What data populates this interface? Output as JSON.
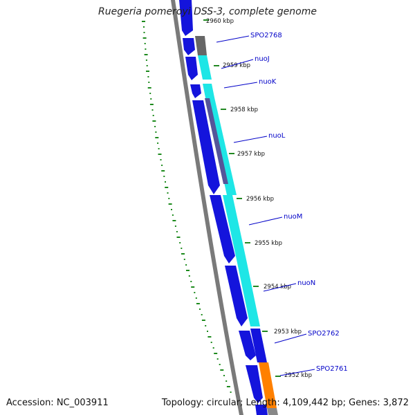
{
  "title": "Ruegeria pomeroyi DSS-3, complete genome",
  "accession_text": "Accession: NC_003911",
  "summary_text": "Topology: circular; Length: 4,109,442 bp; Genes: 3,872",
  "genome": {
    "accession": "NC_003911",
    "topology": "circular",
    "length_bp": 4109442,
    "genes": 3872
  },
  "colors": {
    "backbone": "#7a7a7a",
    "cds": "#1414dc",
    "gene_grey": "#666666",
    "gene_cyan": "#1ee6e6",
    "gene_orange": "#ff8000",
    "gene_purple": "#555599",
    "label": "#0000c8",
    "scale_tick": "#228822",
    "gc_dots": "#1d8a1d"
  },
  "scale_ticks": [
    {
      "label": "2960 kbp"
    },
    {
      "label": "2959 kbp"
    },
    {
      "label": "2958 kbp"
    },
    {
      "label": "2957 kbp"
    },
    {
      "label": "2956 kbp"
    },
    {
      "label": "2955 kbp"
    },
    {
      "label": "2954 kbp"
    },
    {
      "label": "2953 kbp"
    },
    {
      "label": "2952 kbp"
    }
  ],
  "gene_labels": [
    {
      "name": "SPO2768"
    },
    {
      "name": "nuoJ"
    },
    {
      "name": "nuoK"
    },
    {
      "name": "nuoL"
    },
    {
      "name": "nuoM"
    },
    {
      "name": "nuoN"
    },
    {
      "name": "SPO2762"
    },
    {
      "name": "SPO2761"
    }
  ]
}
